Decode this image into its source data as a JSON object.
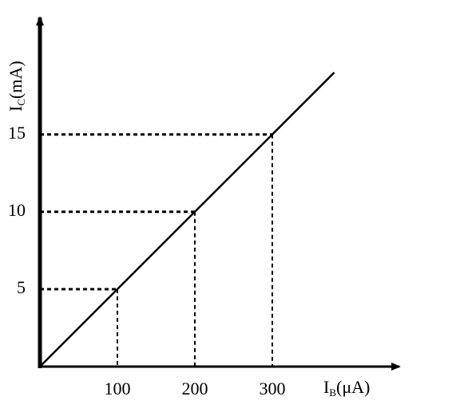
{
  "chart_data": {
    "type": "line",
    "x_label": {
      "main": "I",
      "sub": "B",
      "unit": "(μA)"
    },
    "y_label": {
      "main": "I",
      "sub": "C",
      "unit": "(mA)"
    },
    "x": [
      0,
      100,
      200,
      300,
      380
    ],
    "series": [
      {
        "color": "#000000",
        "values": [
          0,
          5,
          10,
          15,
          19
        ]
      }
    ],
    "xlim": [
      0,
      464
    ],
    "ylim": [
      0,
      22.4
    ],
    "xticks": [
      100,
      200,
      300
    ],
    "yticks": [
      5,
      10,
      15
    ],
    "guides": true
  }
}
